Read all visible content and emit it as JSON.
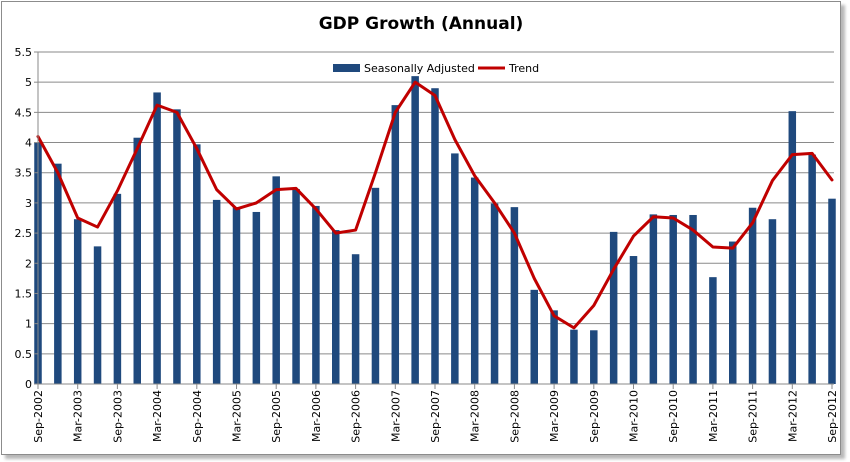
{
  "chart_data": {
    "type": "bar",
    "title": "GDP Growth (Annual)",
    "xlabel": "",
    "ylabel": "",
    "ylim": [
      0,
      5.5
    ],
    "yticks": [
      0,
      0.5,
      1,
      1.5,
      2,
      2.5,
      3,
      3.5,
      4,
      4.5,
      5,
      5.5
    ],
    "ytick_labels": [
      "0",
      "0.5",
      "1",
      "1.5",
      "2",
      "2.5",
      "3",
      "3.5",
      "4",
      "4.5",
      "5",
      "5.5"
    ],
    "grid": "horizontal",
    "legend_position": "top-center",
    "categories": [
      "Sep-2002",
      "Dec-2002",
      "Mar-2003",
      "Jun-2003",
      "Sep-2003",
      "Dec-2003",
      "Mar-2004",
      "Jun-2004",
      "Sep-2004",
      "Dec-2004",
      "Mar-2005",
      "Jun-2005",
      "Sep-2005",
      "Dec-2005",
      "Mar-2006",
      "Jun-2006",
      "Sep-2006",
      "Dec-2006",
      "Mar-2007",
      "Jun-2007",
      "Sep-2007",
      "Dec-2007",
      "Mar-2008",
      "Jun-2008",
      "Sep-2008",
      "Dec-2008",
      "Mar-2009",
      "Jun-2009",
      "Sep-2009",
      "Dec-2009",
      "Mar-2010",
      "Jun-2010",
      "Sep-2010",
      "Dec-2010",
      "Mar-2011",
      "Jun-2011",
      "Sep-2011",
      "Dec-2011",
      "Mar-2012",
      "Jun-2012",
      "Sep-2012"
    ],
    "xtick_labels": [
      "Sep-2002",
      "Mar-2003",
      "Sep-2003",
      "Mar-2004",
      "Sep-2004",
      "Mar-2005",
      "Sep-2005",
      "Mar-2006",
      "Sep-2006",
      "Mar-2007",
      "Sep-2007",
      "Mar-2008",
      "Sep-2008",
      "Mar-2009",
      "Sep-2009",
      "Mar-2010",
      "Sep-2010",
      "Mar-2011",
      "Sep-2011",
      "Mar-2012",
      "Sep-2012"
    ],
    "series": [
      {
        "name": "Seasonally Adjusted",
        "type": "bar",
        "color": "#1f497d",
        "values": [
          4.0,
          3.65,
          2.73,
          2.28,
          3.15,
          4.08,
          4.83,
          4.55,
          3.97,
          3.05,
          2.93,
          2.85,
          3.44,
          3.23,
          2.95,
          2.55,
          2.15,
          3.25,
          4.62,
          5.1,
          4.9,
          3.82,
          3.42,
          2.99,
          2.93,
          1.56,
          1.22,
          0.9,
          0.89,
          2.52,
          2.12,
          2.81,
          2.8,
          2.8,
          1.77,
          2.36,
          2.92,
          2.73,
          4.52,
          3.8,
          3.07
        ]
      },
      {
        "name": "Trend",
        "type": "line",
        "color": "#c00000",
        "values": [
          4.1,
          3.5,
          2.75,
          2.6,
          3.2,
          3.9,
          4.62,
          4.5,
          3.9,
          3.22,
          2.9,
          3.0,
          3.22,
          3.24,
          2.9,
          2.5,
          2.55,
          3.5,
          4.5,
          5.0,
          4.78,
          4.05,
          3.45,
          3.0,
          2.5,
          1.75,
          1.13,
          0.93,
          1.3,
          1.9,
          2.45,
          2.77,
          2.75,
          2.55,
          2.27,
          2.25,
          2.67,
          3.37,
          3.8,
          3.82,
          3.38
        ]
      }
    ]
  }
}
